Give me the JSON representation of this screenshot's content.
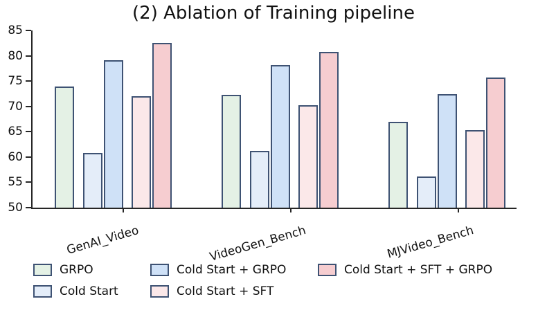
{
  "chart_data": {
    "type": "bar",
    "title": "(2) Ablation of Training pipeline",
    "categories": [
      "GenAI_Video",
      "VideoGen_Bench",
      "MJVideo_Bench"
    ],
    "series": [
      {
        "name": "GRPO",
        "color": "#e4f1e5",
        "values": [
          73.9,
          72.3,
          66.9
        ]
      },
      {
        "name": "Cold Start",
        "color": "#e4edf9",
        "values": [
          60.8,
          61.2,
          56.1
        ]
      },
      {
        "name": "Cold Start + GRPO",
        "color": "#cfe1f7",
        "values": [
          79.1,
          78.2,
          72.4
        ]
      },
      {
        "name": "Cold Start + SFT",
        "color": "#fbe8e9",
        "values": [
          72.0,
          70.3,
          65.3
        ]
      },
      {
        "name": "Cold Start + SFT + GRPO",
        "color": "#f6cdd0",
        "values": [
          82.5,
          80.7,
          75.7
        ]
      }
    ],
    "ylim": [
      50,
      85
    ],
    "yticks": [
      50,
      55,
      60,
      65,
      70,
      75,
      80,
      85
    ],
    "xlabel": "",
    "ylabel": "",
    "grid": false,
    "legend_position": "bottom",
    "bar_edge_color": "#3e5273",
    "axis_color": "#262626"
  }
}
